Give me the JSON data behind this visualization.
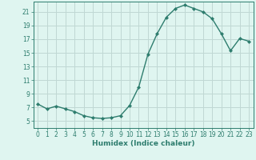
{
  "x": [
    0,
    1,
    2,
    3,
    4,
    5,
    6,
    7,
    8,
    9,
    10,
    11,
    12,
    13,
    14,
    15,
    16,
    17,
    18,
    19,
    20,
    21,
    22,
    23
  ],
  "y": [
    7.5,
    6.8,
    7.2,
    6.8,
    6.4,
    5.8,
    5.5,
    5.4,
    5.5,
    5.8,
    7.3,
    10.0,
    14.8,
    17.8,
    20.2,
    21.5,
    22.0,
    21.5,
    21.0,
    20.0,
    17.8,
    15.3,
    17.1,
    16.7
  ],
  "xlabel": "Humidex (Indice chaleur)",
  "line_color": "#2e7d6e",
  "marker": "D",
  "marker_size": 2,
  "bg_color": "#dff5f0",
  "grid_color": "#c0d8d4",
  "tick_label_color": "#2e7d6e",
  "axis_color": "#2e7d6e",
  "ylim": [
    4,
    22.5
  ],
  "xlim": [
    -0.5,
    23.5
  ],
  "yticks": [
    5,
    7,
    9,
    11,
    13,
    15,
    17,
    19,
    21
  ],
  "xticks": [
    0,
    1,
    2,
    3,
    4,
    5,
    6,
    7,
    8,
    9,
    10,
    11,
    12,
    13,
    14,
    15,
    16,
    17,
    18,
    19,
    20,
    21,
    22,
    23
  ]
}
